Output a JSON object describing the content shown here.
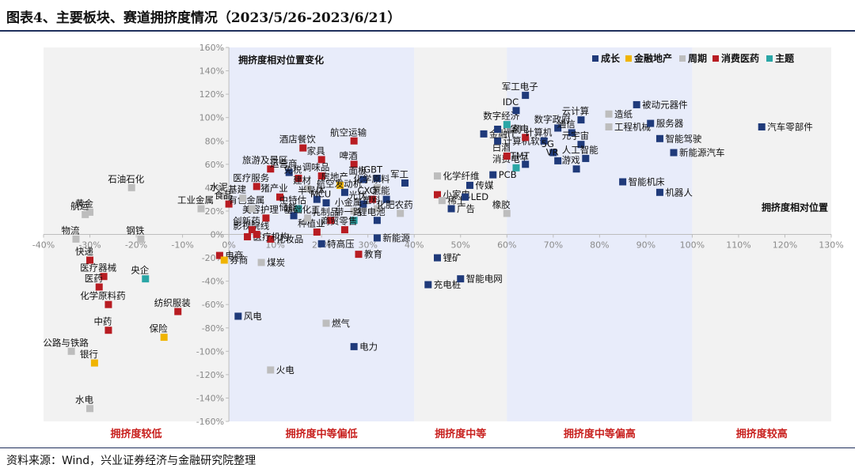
{
  "title": "图表4、主要板块、赛道拥挤度情况（2023/5/26-2023/6/21）",
  "source": "资料来源：Wind，兴业证券经济与金融研究院整理",
  "colors": {
    "成长": "#1f3a7a",
    "金融地产": "#f0b400",
    "周期": "#bdbdbd",
    "消费医药": "#b81c22",
    "主题": "#2aa6a6",
    "band_light": "#f2f2f2",
    "band_blue": "#e8ecfa",
    "region_label": "#c8201e"
  },
  "chart_data": {
    "type": "scatter",
    "title": "",
    "xlabel": "拥挤度相对位置",
    "ylabel": "拥挤度相对位置变化",
    "xlim": [
      -40,
      130
    ],
    "ylim": [
      -160,
      160
    ],
    "xticks": [
      "-40%",
      "-30%",
      "-20%",
      "-10%",
      "0%",
      "10%",
      "20%",
      "30%",
      "40%",
      "50%",
      "60%",
      "70%",
      "80%",
      "90%",
      "100%",
      "110%",
      "120%",
      "130%"
    ],
    "yticks": [
      "160%",
      "140%",
      "120%",
      "100%",
      "80%",
      "60%",
      "40%",
      "20%",
      "0%",
      "-20%",
      "-40%",
      "-60%",
      "-80%",
      "-100%",
      "-120%",
      "-140%",
      "-160%"
    ],
    "legend_position": "top-right",
    "legend": [
      "成长",
      "金融地产",
      "周期",
      "消费医药",
      "主题"
    ],
    "regions": [
      {
        "name": "拥挤度较低",
        "x_range": [
          -40,
          0
        ]
      },
      {
        "name": "拥挤度中等偏低",
        "x_range": [
          0,
          40
        ]
      },
      {
        "name": "拥挤度中等",
        "x_range": [
          40,
          60
        ]
      },
      {
        "name": "拥挤度中等偏高",
        "x_range": [
          60,
          100
        ]
      },
      {
        "name": "拥挤度较高",
        "x_range": [
          100,
          130
        ]
      }
    ],
    "points": [
      {
        "name": "物流",
        "x": -33,
        "y": -4,
        "cat": "周期"
      },
      {
        "name": "快递",
        "x": -30,
        "y": -22,
        "cat": "消费医药"
      },
      {
        "name": "钢铁",
        "x": -19,
        "y": -4,
        "cat": "周期"
      },
      {
        "name": "石油石化",
        "x": -21,
        "y": 40,
        "cat": "周期"
      },
      {
        "name": "黄金",
        "x": -30,
        "y": 19,
        "cat": "周期"
      },
      {
        "name": "航运",
        "x": -31,
        "y": 17,
        "cat": "周期"
      },
      {
        "name": "医疗器械",
        "x": -27,
        "y": -36,
        "cat": "消费医药"
      },
      {
        "name": "医药",
        "x": -28,
        "y": -45,
        "cat": "消费医药"
      },
      {
        "name": "央企",
        "x": -18,
        "y": -38,
        "cat": "主题"
      },
      {
        "name": "化学原料药",
        "x": -26,
        "y": -60,
        "cat": "消费医药"
      },
      {
        "name": "纺织服装",
        "x": -11,
        "y": -66,
        "cat": "消费医药"
      },
      {
        "name": "中药",
        "x": -26,
        "y": -82,
        "cat": "消费医药"
      },
      {
        "name": "保险",
        "x": -14,
        "y": -88,
        "cat": "金融地产"
      },
      {
        "name": "公路与铁路",
        "x": -34,
        "y": -100,
        "cat": "周期"
      },
      {
        "name": "银行",
        "x": -29,
        "y": -110,
        "cat": "金融地产"
      },
      {
        "name": "水电",
        "x": -30,
        "y": -149,
        "cat": "周期"
      },
      {
        "name": "工业金属",
        "x": -6,
        "y": 22,
        "cat": "周期"
      },
      {
        "name": "电商",
        "x": -2,
        "y": -18,
        "cat": "消费医药"
      },
      {
        "name": "券商",
        "x": -1,
        "y": -22,
        "cat": "金融地产"
      },
      {
        "name": "水泥",
        "x": -1,
        "y": 33,
        "cat": "周期"
      },
      {
        "name": "食品",
        "x": 0,
        "y": 26,
        "cat": "消费医药"
      },
      {
        "name": "风电",
        "x": 2,
        "y": -70,
        "cat": "成长"
      },
      {
        "name": "煤炭",
        "x": 7,
        "y": -24,
        "cat": "周期"
      },
      {
        "name": "火电",
        "x": 9,
        "y": -116,
        "cat": "周期"
      },
      {
        "name": "燃气",
        "x": 21,
        "y": -76,
        "cat": "周期"
      },
      {
        "name": "电力",
        "x": 27,
        "y": -96,
        "cat": "成长"
      },
      {
        "name": "教育",
        "x": 28,
        "y": -17,
        "cat": "消费医药"
      },
      {
        "name": "特高压",
        "x": 20,
        "y": -8,
        "cat": "成长"
      },
      {
        "name": "新能源",
        "x": 32,
        "y": -3,
        "cat": "成长"
      },
      {
        "name": "种植业",
        "x": 19,
        "y": 2,
        "cat": "消费医药"
      },
      {
        "name": "化妆品",
        "x": 9,
        "y": -4,
        "cat": "消费医药"
      },
      {
        "name": "医疗机构",
        "x": 4,
        "y": -2,
        "cat": "消费医药"
      },
      {
        "name": "影视院线",
        "x": 6,
        "y": 0,
        "cat": "消费医药"
      },
      {
        "name": "创新药",
        "x": 5,
        "y": 4,
        "cat": "消费医药"
      },
      {
        "name": "美容护理",
        "x": 8,
        "y": 14,
        "cat": "消费医药"
      },
      {
        "name": "有色金属",
        "x": 5,
        "y": 22,
        "cat": "周期"
      },
      {
        "name": "基建",
        "x": 3,
        "y": 31,
        "cat": "周期"
      },
      {
        "name": "医疗服务",
        "x": 6,
        "y": 41,
        "cat": "消费医药"
      },
      {
        "name": "旅游及景区",
        "x": 9,
        "y": 56,
        "cat": "消费医药"
      },
      {
        "name": "运营商",
        "x": 13,
        "y": 53,
        "cat": "成长"
      },
      {
        "name": "酒店餐饮",
        "x": 16,
        "y": 74,
        "cat": "消费医药"
      },
      {
        "name": "家具",
        "x": 20,
        "y": 64,
        "cat": "消费医药"
      },
      {
        "name": "航空运输",
        "x": 27,
        "y": 80,
        "cat": "消费医药"
      },
      {
        "name": "啤酒",
        "x": 27,
        "y": 60,
        "cat": "消费医药"
      },
      {
        "name": "免税",
        "x": 15,
        "y": 48,
        "cat": "消费医药"
      },
      {
        "name": "调味品",
        "x": 20,
        "y": 50,
        "cat": "消费医药"
      },
      {
        "name": "建材",
        "x": 17,
        "y": 39,
        "cat": "周期"
      },
      {
        "name": "猪产业",
        "x": 11,
        "y": 32,
        "cat": "消费医药"
      },
      {
        "name": "半导体",
        "x": 19,
        "y": 30,
        "cat": "成长"
      },
      {
        "name": "MCU",
        "x": 21,
        "y": 27,
        "cat": "成长"
      },
      {
        "name": "房地产",
        "x": 24,
        "y": 42,
        "cat": "金融地产"
      },
      {
        "name": "航空发动机",
        "x": 25,
        "y": 36,
        "cat": "成长"
      },
      {
        "name": "中特估",
        "x": 15,
        "y": 22,
        "cat": "主题"
      },
      {
        "name": "储能",
        "x": 14,
        "y": 16,
        "cat": "成长"
      },
      {
        "name": "基础化工",
        "x": 17,
        "y": 14,
        "cat": "周期"
      },
      {
        "name": "光伏",
        "x": 29,
        "y": 26,
        "cat": "成长"
      },
      {
        "name": "小金属",
        "x": 27,
        "y": 20,
        "cat": "周期"
      },
      {
        "name": "乳制品",
        "x": 22,
        "y": 12,
        "cat": "消费医药"
      },
      {
        "name": "带一路",
        "x": 27,
        "y": 12,
        "cat": "主题"
      },
      {
        "name": "商贸零售",
        "x": 25,
        "y": 4,
        "cat": "消费医药"
      },
      {
        "name": "面板",
        "x": 29,
        "y": 47,
        "cat": "成长"
      },
      {
        "name": "IGBT",
        "x": 32,
        "y": 48,
        "cat": "成长"
      },
      {
        "name": "化学原料",
        "x": 32,
        "y": 40,
        "cat": "周期"
      },
      {
        "name": "CXO",
        "x": 31,
        "y": 30,
        "cat": "消费医药"
      },
      {
        "name": "氢能",
        "x": 34,
        "y": 30,
        "cat": "成长"
      },
      {
        "name": "塑料",
        "x": 32,
        "y": 22,
        "cat": "周期"
      },
      {
        "name": "锂电池",
        "x": 32,
        "y": 12,
        "cat": "成长"
      },
      {
        "name": "军工",
        "x": 38,
        "y": 44,
        "cat": "成长"
      },
      {
        "name": "化肥农药",
        "x": 37,
        "y": 18,
        "cat": "周期"
      },
      {
        "name": "化学纤维",
        "x": 45,
        "y": 50,
        "cat": "周期"
      },
      {
        "name": "小家电",
        "x": 45,
        "y": 34,
        "cat": "消费医药"
      },
      {
        "name": "稀土",
        "x": 46,
        "y": 29,
        "cat": "周期"
      },
      {
        "name": "广告",
        "x": 48,
        "y": 22,
        "cat": "成长"
      },
      {
        "name": "锂矿",
        "x": 45,
        "y": -20,
        "cat": "成长"
      },
      {
        "name": "充电桩",
        "x": 43,
        "y": -43,
        "cat": "成长"
      },
      {
        "name": "智能电网",
        "x": 50,
        "y": -38,
        "cat": "成长"
      },
      {
        "name": "PCB",
        "x": 57,
        "y": 51,
        "cat": "成长"
      },
      {
        "name": "传媒",
        "x": 52,
        "y": 42,
        "cat": "成长"
      },
      {
        "name": "LED",
        "x": 51,
        "y": 32,
        "cat": "成长"
      },
      {
        "name": "橡胶",
        "x": 60,
        "y": 18,
        "cat": "周期"
      },
      {
        "name": "消费电子",
        "x": 62,
        "y": 57,
        "cat": "主题"
      },
      {
        "name": "TMT",
        "x": 64,
        "y": 60,
        "cat": "成长"
      },
      {
        "name": "白酒",
        "x": 60,
        "y": 67,
        "cat": "消费医药"
      },
      {
        "name": "计算机软件",
        "x": 58,
        "y": 80,
        "cat": "成长"
      },
      {
        "name": "金融IT",
        "x": 55,
        "y": 86,
        "cat": "成长"
      },
      {
        "name": "信创",
        "x": 58,
        "y": 90,
        "cat": "成长"
      },
      {
        "name": "数字经济",
        "x": 60,
        "y": 94,
        "cat": "主题"
      },
      {
        "name": "IDC",
        "x": 62,
        "y": 106,
        "cat": "成长"
      },
      {
        "name": "军工电子",
        "x": 64,
        "y": 119,
        "cat": "成长"
      },
      {
        "name": "家电",
        "x": 64,
        "y": 83,
        "cat": "消费医药"
      },
      {
        "name": "数字政府",
        "x": 71,
        "y": 91,
        "cat": "成长"
      },
      {
        "name": "云计算",
        "x": 76,
        "y": 98,
        "cat": "成长"
      },
      {
        "name": "通信",
        "x": 74,
        "y": 87,
        "cat": "成长"
      },
      {
        "name": "计算机",
        "x": 68,
        "y": 80,
        "cat": "成长"
      },
      {
        "name": "元宇宙",
        "x": 76,
        "y": 77,
        "cat": "成长"
      },
      {
        "name": "5G",
        "x": 70,
        "y": 70,
        "cat": "成长"
      },
      {
        "name": "VR",
        "x": 71,
        "y": 63,
        "cat": "成长"
      },
      {
        "name": "游戏",
        "x": 75,
        "y": 56,
        "cat": "成长"
      },
      {
        "name": "人工智能",
        "x": 77,
        "y": 65,
        "cat": "成长"
      },
      {
        "name": "工程机械",
        "x": 82,
        "y": 92,
        "cat": "周期"
      },
      {
        "name": "造纸",
        "x": 82,
        "y": 103,
        "cat": "周期"
      },
      {
        "name": "被动元器件",
        "x": 88,
        "y": 111,
        "cat": "成长"
      },
      {
        "name": "服务器",
        "x": 91,
        "y": 95,
        "cat": "成长"
      },
      {
        "name": "智能驾驶",
        "x": 93,
        "y": 82,
        "cat": "成长"
      },
      {
        "name": "新能源汽车",
        "x": 96,
        "y": 70,
        "cat": "成长"
      },
      {
        "name": "智能机床",
        "x": 85,
        "y": 45,
        "cat": "成长"
      },
      {
        "name": "机器人",
        "x": 93,
        "y": 36,
        "cat": "成长"
      },
      {
        "name": "汽车零部件",
        "x": 115,
        "y": 92,
        "cat": "成长"
      }
    ]
  }
}
